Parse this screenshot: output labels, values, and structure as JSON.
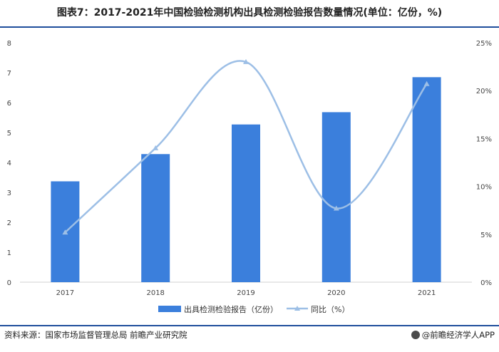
{
  "title": "图表7：2017-2021年中国检验检测机构出具检测检验报告数量情况(单位：亿份，%)",
  "source": "资料来源：国家市场监督管理总局 前瞻产业研究院",
  "credit": "@前瞻经济学人APP",
  "colors": {
    "bar": "#3b7fdc",
    "line": "#9dbfe6",
    "rule": "#1f4e9c"
  },
  "chart_data": {
    "type": "bar",
    "categories": [
      "2017",
      "2018",
      "2019",
      "2020",
      "2021"
    ],
    "series": [
      {
        "name": "出具检测检验报告（亿份）",
        "type": "bar",
        "axis": "left",
        "values": [
          3.37,
          4.28,
          5.27,
          5.68,
          6.85
        ]
      },
      {
        "name": "同比（%）",
        "type": "line",
        "axis": "right",
        "values": [
          5.2,
          14.0,
          23.0,
          7.7,
          20.7
        ]
      }
    ],
    "y_left": {
      "min": 0,
      "max": 8,
      "ticks": [
        "0",
        "1",
        "2",
        "3",
        "4",
        "5",
        "6",
        "7",
        "8"
      ]
    },
    "y_right": {
      "min": 0,
      "max": 25,
      "ticks": [
        "0%",
        "5%",
        "10%",
        "15%",
        "20%",
        "25%"
      ]
    },
    "legend": "bottom-center",
    "grid": false
  }
}
